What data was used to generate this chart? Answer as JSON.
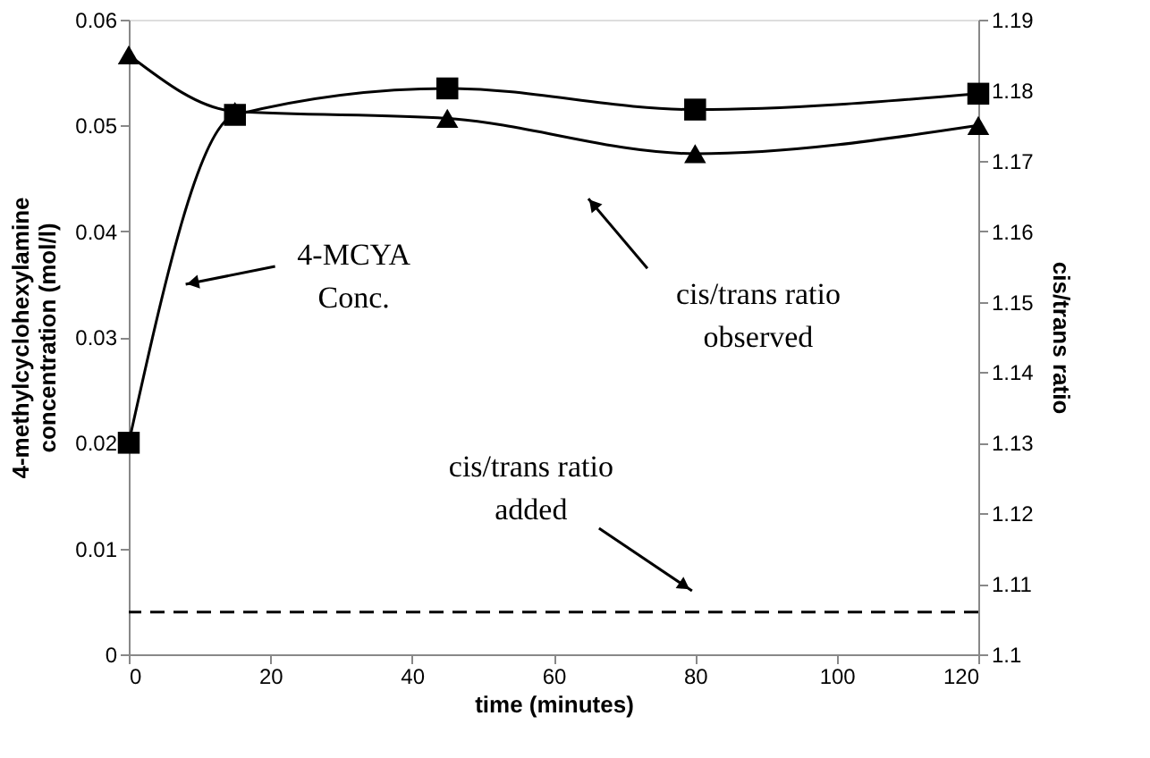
{
  "chart_data": {
    "type": "line",
    "xlabel": "time (minutes)",
    "ylabel": "4-methylcyclohexylamine\nconcentration (mol/l)",
    "y2label": "cis/trans ratio",
    "x": [
      0,
      15,
      45,
      80,
      120
    ],
    "xlim": [
      0,
      120
    ],
    "xticks": [
      0,
      20,
      40,
      60,
      80,
      100,
      120
    ],
    "ylim": [
      0,
      0.06
    ],
    "yticks": [
      0,
      0.01,
      0.02,
      0.03,
      0.04,
      0.05,
      0.06
    ],
    "y2lim": [
      1.1,
      1.19
    ],
    "y2ticks": [
      1.1,
      1.11,
      1.12,
      1.13,
      1.14,
      1.15,
      1.16,
      1.17,
      1.18,
      1.19
    ],
    "series": [
      {
        "color": "#000000",
        "marker": "square",
        "values": [
          0.02,
          0.051,
          0.0535,
          0.0515,
          0.053
        ]
      },
      {
        "color": "#000000",
        "marker": "triangle",
        "axis": "y2",
        "values": [
          1.185,
          1.177,
          1.176,
          1.171,
          1.175
        ]
      }
    ],
    "ref_lines": [
      {
        "axis": "y2",
        "value": 1.106,
        "color": "#000000",
        "line_style": "dashed"
      }
    ],
    "annotations": [
      "4-MCYA\nConc.",
      "cis/trans ratio\nobserved",
      "cis/trans ratio\nadded"
    ],
    "grid": false
  }
}
